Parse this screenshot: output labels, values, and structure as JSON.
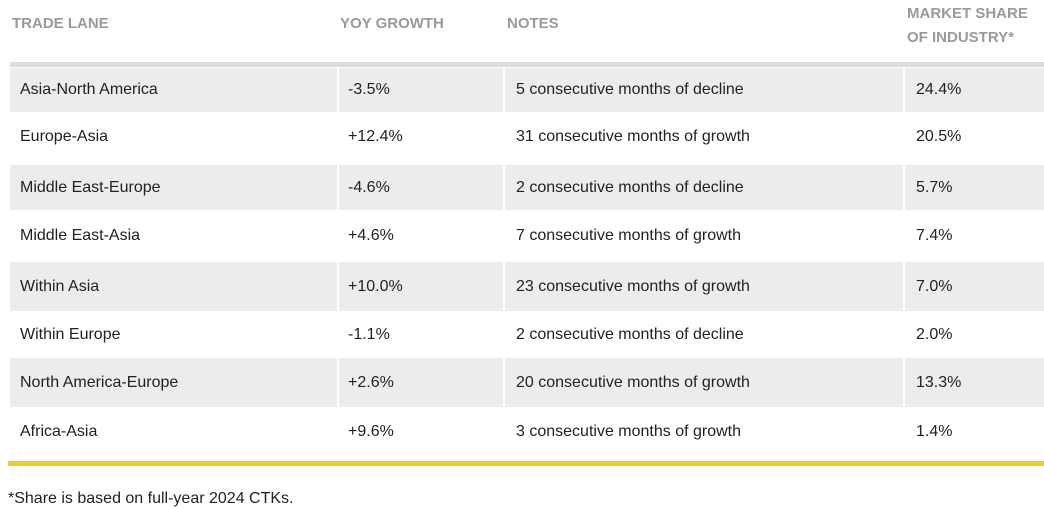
{
  "table": {
    "headers": [
      "TRADE LANE",
      "YOY GROWTH",
      "NOTES",
      "MARKET SHARE OF INDUSTRY*"
    ],
    "rows": [
      [
        "Asia-North America",
        "-3.5%",
        "5 consecutive months of decline",
        "24.4%"
      ],
      [
        "Europe-Asia",
        "+12.4%",
        "31 consecutive months of growth",
        "20.5%"
      ],
      [
        "Middle East-Europe",
        "-4.6%",
        "2 consecutive months of decline",
        "5.7%"
      ],
      [
        "Middle East-Asia",
        "+4.6%",
        "7 consecutive months of growth",
        "7.4%"
      ],
      [
        "Within Asia",
        "+10.0%",
        "23 consecutive months of growth",
        "7.0%"
      ],
      [
        "Within Europe",
        "-1.1%",
        "2 consecutive months of decline",
        "2.0%"
      ],
      [
        "North America-Europe",
        "+2.6%",
        "20 consecutive months of growth",
        "13.3%"
      ],
      [
        "Africa-Asia",
        "+9.6%",
        "3 consecutive months of growth",
        "1.4%"
      ]
    ]
  },
  "footnote": "*Share is based on full-year 2024 CTKs."
}
